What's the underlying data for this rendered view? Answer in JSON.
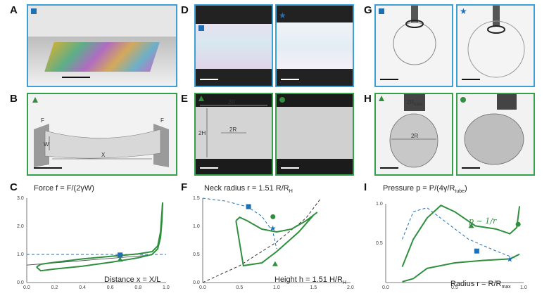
{
  "panels": {
    "A": "A",
    "B": "B",
    "C": "C",
    "D": "D",
    "E": "E",
    "F": "F",
    "G": "G",
    "H": "H",
    "I": "I"
  },
  "colors": {
    "blue": "#1f6fb5",
    "frame_blue": "#3aa0d6",
    "green": "#2f8f3e",
    "frame_green": "#35a04a"
  },
  "icons": {
    "square": "square-marker-icon",
    "star": "star-marker-icon",
    "triangle": "triangle-marker-icon",
    "circle": "circle-marker-icon"
  },
  "labels_B": {
    "F_left": "F",
    "F_right": "F",
    "W": "W",
    "X": "X"
  },
  "labels_E": {
    "R2": "2R",
    "H2": "2H",
    "R2_inner": "2R"
  },
  "labels_H": {
    "R2": "2R",
    "R_tube": "2R",
    "R_tube_sub": "tube",
    "R2_inner": "2R"
  },
  "chart_data": [
    {
      "id": "C",
      "type": "line",
      "title": "Force f = F/(2γW)",
      "xlabel": "Distance x = X/L",
      "xlim": [
        0.0,
        1.0
      ],
      "ylim": [
        0.0,
        3.0
      ],
      "xticks": [
        "0.0",
        "0.2",
        "0.4",
        "0.6",
        "0.8",
        "1.0"
      ],
      "yticks": [
        "0.0",
        "1.0",
        "2.0",
        "3.0"
      ],
      "series": [
        {
          "x": [
            0.07,
            0.1,
            0.2,
            0.4,
            0.6,
            0.8,
            0.9,
            0.94,
            0.96,
            0.97,
            0.975
          ],
          "y": [
            0.55,
            0.42,
            0.48,
            0.58,
            0.72,
            0.88,
            1.0,
            1.2,
            1.6,
            2.2,
            2.85
          ]
        },
        {
          "x": [
            0.975,
            0.96,
            0.94,
            0.9,
            0.8,
            0.6,
            0.4,
            0.2,
            0.1,
            0.07
          ],
          "y": [
            2.85,
            1.8,
            1.3,
            1.1,
            1.02,
            0.93,
            0.84,
            0.72,
            0.65,
            0.55
          ]
        }
      ],
      "reference_y": 1.0,
      "fit": {
        "x": [
          0.0,
          0.9
        ],
        "y": [
          0.62,
          0.98
        ]
      },
      "markers": [
        {
          "shape": "square",
          "x": 0.67,
          "y": 0.98
        },
        {
          "shape": "triangle",
          "x": 0.67,
          "y": 0.82
        }
      ]
    },
    {
      "id": "F",
      "type": "line",
      "title": "Neck radius r = 1.51 R/R",
      "title_sub": "H",
      "xlabel": "Height h = 1.51 H/R",
      "xlabel_sub": "H",
      "xlim": [
        0.0,
        2.0
      ],
      "ylim": [
        0.0,
        1.5
      ],
      "xticks": [
        "0.0",
        "0.5",
        "1.0",
        "1.5",
        "2.0"
      ],
      "yticks": [
        "0.0",
        "0.5",
        "1.0",
        "1.5"
      ],
      "series": [
        {
          "x": [
            0.45,
            0.5,
            0.6,
            0.8,
            1.0,
            1.2,
            1.4,
            1.55,
            1.5,
            1.3,
            1.0,
            0.8,
            0.55,
            0.45
          ],
          "y": [
            1.1,
            1.16,
            1.1,
            0.95,
            0.9,
            0.95,
            1.1,
            1.25,
            1.2,
            0.9,
            0.55,
            0.35,
            0.3,
            1.1
          ]
        }
      ],
      "dashed_blue": {
        "x": [
          0.0,
          0.3,
          0.6,
          0.8,
          0.95,
          1.0
        ],
        "y": [
          1.5,
          1.45,
          1.35,
          1.18,
          0.9,
          0.6
        ]
      },
      "dashed_black": {
        "x": [
          0.0,
          0.5,
          1.0,
          1.4,
          1.6
        ],
        "y": [
          0.0,
          0.3,
          0.72,
          1.15,
          1.5
        ]
      },
      "markers": [
        {
          "shape": "square",
          "x": 0.62,
          "y": 1.35
        },
        {
          "shape": "circle",
          "x": 0.95,
          "y": 1.17
        },
        {
          "shape": "star",
          "x": 0.95,
          "y": 0.97
        },
        {
          "shape": "triangle",
          "x": 0.98,
          "y": 0.33
        }
      ]
    },
    {
      "id": "I",
      "type": "line",
      "title": "Pressure p = P/(4γ/R",
      "title_sub": "tube",
      "title_end": ")",
      "xlabel": "Radius r = R/R",
      "xlabel_sub": "max",
      "annotation": "p ~ 1/r",
      "xlim": [
        0.0,
        1.0
      ],
      "ylim": [
        0.0,
        1.0
      ],
      "xticks": [
        "0.0",
        "0.5",
        "1.0"
      ],
      "yticks": [
        "0.5",
        "1.0"
      ],
      "series": [
        {
          "x": [
            0.12,
            0.2,
            0.3,
            0.4,
            0.5,
            0.65,
            0.8,
            0.9,
            0.95,
            0.97
          ],
          "y": [
            0.2,
            0.55,
            0.82,
            0.98,
            0.9,
            0.72,
            0.68,
            0.62,
            0.7,
            0.97
          ]
        },
        {
          "x": [
            0.97,
            0.9,
            0.7,
            0.5,
            0.3,
            0.2,
            0.12
          ],
          "y": [
            0.36,
            0.3,
            0.28,
            0.25,
            0.18,
            0.05,
            0.01
          ]
        }
      ],
      "dashed_blue": {
        "x": [
          0.12,
          0.2,
          0.3,
          0.45,
          0.6,
          0.8,
          0.95
        ],
        "y": [
          0.55,
          0.9,
          0.95,
          0.75,
          0.55,
          0.4,
          0.3
        ]
      },
      "markers": [
        {
          "shape": "square",
          "x": 0.66,
          "y": 0.4
        },
        {
          "shape": "star",
          "x": 0.9,
          "y": 0.3
        },
        {
          "shape": "triangle",
          "x": 0.62,
          "y": 0.72
        },
        {
          "shape": "circle",
          "x": 0.96,
          "y": 0.74
        }
      ]
    }
  ]
}
